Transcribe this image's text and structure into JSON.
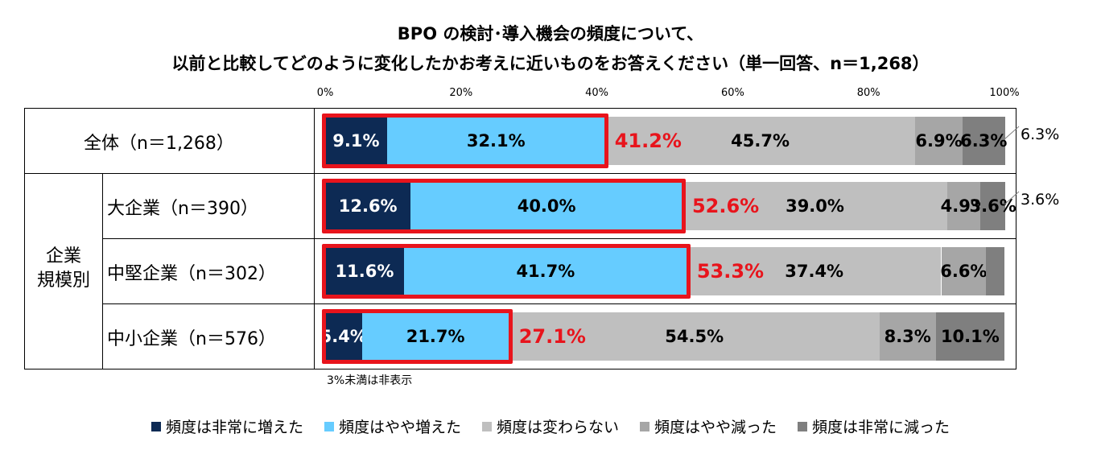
{
  "title": {
    "line1": "BPO の検討･導入機会の頻度について、",
    "line2": "以前と比較してどのように変化したかお考えに近いものをお答えください（単一回答、n＝1,268）"
  },
  "rows_group_label": "企業\n規模別",
  "note": "3%未満は非表示",
  "chart_data": {
    "type": "bar",
    "orientation": "horizontal",
    "stacked": true,
    "xlim": [
      0,
      100
    ],
    "xticks": [
      "0%",
      "20%",
      "40%",
      "60%",
      "80%",
      "100%"
    ],
    "categories": [
      "全体（n＝1,268）",
      "大企業（n＝390）",
      "中堅企業（n＝302）",
      "中小企業（n＝576）"
    ],
    "series": [
      {
        "name": "頻度は非常に増えた",
        "color": "#0d2a54",
        "values": [
          9.1,
          12.6,
          11.6,
          5.4
        ],
        "labels": [
          "9.1%",
          "12.6%",
          "11.6%",
          "5.4%"
        ]
      },
      {
        "name": "頻度はやや増えた",
        "color": "#66ccff",
        "values": [
          32.1,
          40.0,
          41.7,
          21.7
        ],
        "labels": [
          "32.1%",
          "40.0%",
          "41.7%",
          "21.7%"
        ]
      },
      {
        "name": "頻度は変わらない",
        "color": "#bfbfbf",
        "values": [
          45.7,
          39.0,
          37.4,
          54.5
        ],
        "labels": [
          "45.7%",
          "39.0%",
          "37.4%",
          "54.5%"
        ]
      },
      {
        "name": "頻度はやや減った",
        "color": "#a6a6a6",
        "values": [
          6.9,
          4.9,
          6.6,
          8.3
        ],
        "labels": [
          "6.9%",
          "4.9%",
          "6.6%",
          "8.3%"
        ]
      },
      {
        "name": "頻度は非常に減った",
        "color": "#7f7f7f",
        "values": [
          6.3,
          3.6,
          2.7,
          10.1
        ],
        "labels": [
          "6.3%",
          "3.6%",
          "",
          "10.1%"
        ]
      }
    ],
    "increased_totals": [
      "41.2%",
      "52.6%",
      "53.3%",
      "27.1%"
    ],
    "highlight_color": "#e8141c",
    "outside_labels": [
      "6.3%",
      "3.6%",
      "",
      ""
    ],
    "legend_position": "bottom"
  }
}
